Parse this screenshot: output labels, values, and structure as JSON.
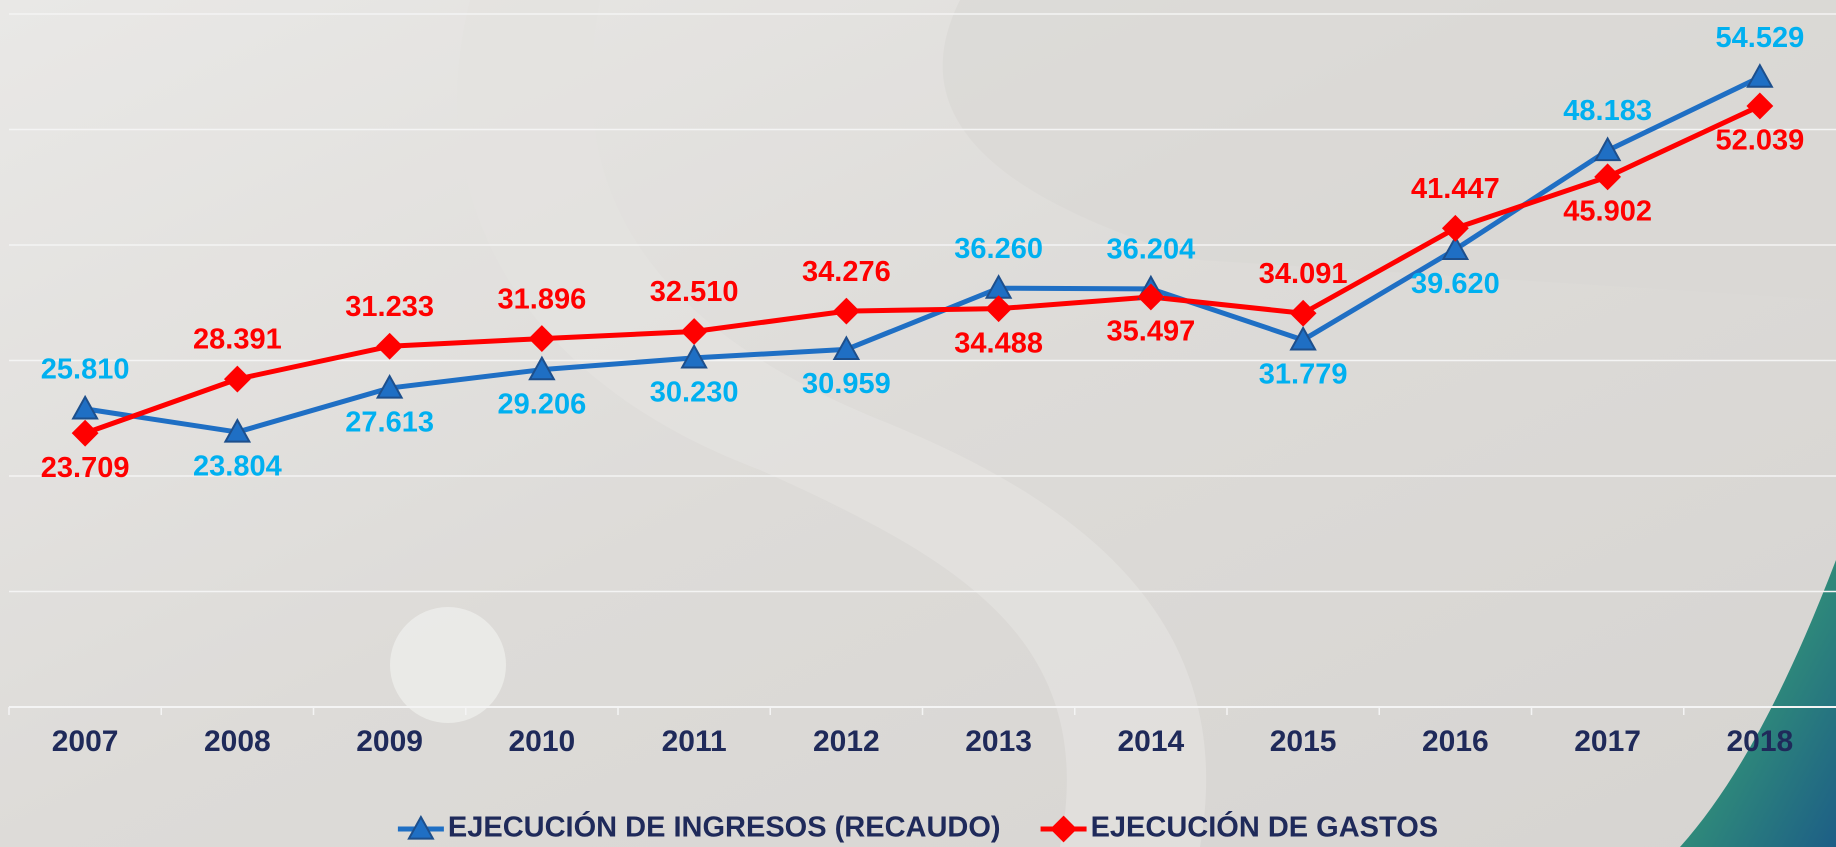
{
  "chart_data": {
    "type": "line",
    "categories": [
      "2007",
      "2008",
      "2009",
      "2010",
      "2011",
      "2012",
      "2013",
      "2014",
      "2015",
      "2016",
      "2017",
      "2018"
    ],
    "series": [
      {
        "name": "EJECUCIÓN DE INGRESOS (RECAUDO)",
        "color": "#1f6fc4",
        "label_color": "#00b0f0",
        "marker": "triangle",
        "values": [
          25810,
          23804,
          27613,
          29206,
          30230,
          30959,
          36260,
          36204,
          31779,
          39620,
          48183,
          54529
        ],
        "value_labels": [
          "25.810",
          "23.804",
          "27.613",
          "29.206",
          "30.230",
          "30.959",
          "36.260",
          "36.204",
          "31.779",
          "39.620",
          "48.183",
          "54.529"
        ]
      },
      {
        "name": "EJECUCIÓN DE GASTOS",
        "color": "#ff0000",
        "label_color": "#ff0000",
        "marker": "diamond",
        "values": [
          23709,
          28391,
          31233,
          31896,
          32510,
          34276,
          34488,
          35497,
          34091,
          41447,
          45902,
          52039
        ],
        "value_labels": [
          "23.709",
          "28.391",
          "31.233",
          "31.896",
          "32.510",
          "34.276",
          "34.488",
          "35.497",
          "34.091",
          "41.447",
          "45.902",
          "52.039"
        ]
      }
    ],
    "ylim": [
      0,
      60000
    ],
    "yticks": [
      0,
      10000,
      20000,
      30000,
      40000,
      50000,
      60000
    ],
    "grid": true,
    "legend": "bottom"
  }
}
